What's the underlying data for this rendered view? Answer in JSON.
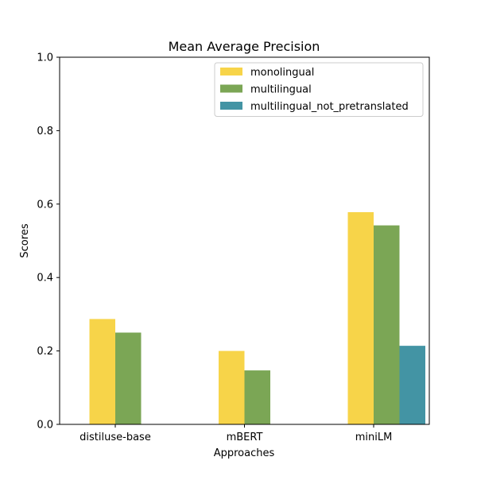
{
  "chart_data": {
    "type": "bar",
    "title": "Mean Average Precision",
    "xlabel": "Approaches",
    "ylabel": "Scores",
    "ylim": [
      0,
      1.0
    ],
    "yticks": [
      "0.0",
      "0.2",
      "0.4",
      "0.6",
      "0.8",
      "1.0"
    ],
    "categories": [
      "distiluse-base",
      "mBERT",
      "miniLM"
    ],
    "series": [
      {
        "name": "monolingual",
        "color": "#f7d449",
        "values": [
          0.287,
          0.2,
          0.578
        ]
      },
      {
        "name": "multilingual",
        "color": "#7ba655",
        "values": [
          0.25,
          0.147,
          0.542
        ]
      },
      {
        "name": "multilingual_not_pretranslated",
        "color": "#4394a4",
        "values": [
          0.0,
          0.0,
          0.214
        ]
      }
    ],
    "legend_position": "upper-right",
    "grid": false
  }
}
